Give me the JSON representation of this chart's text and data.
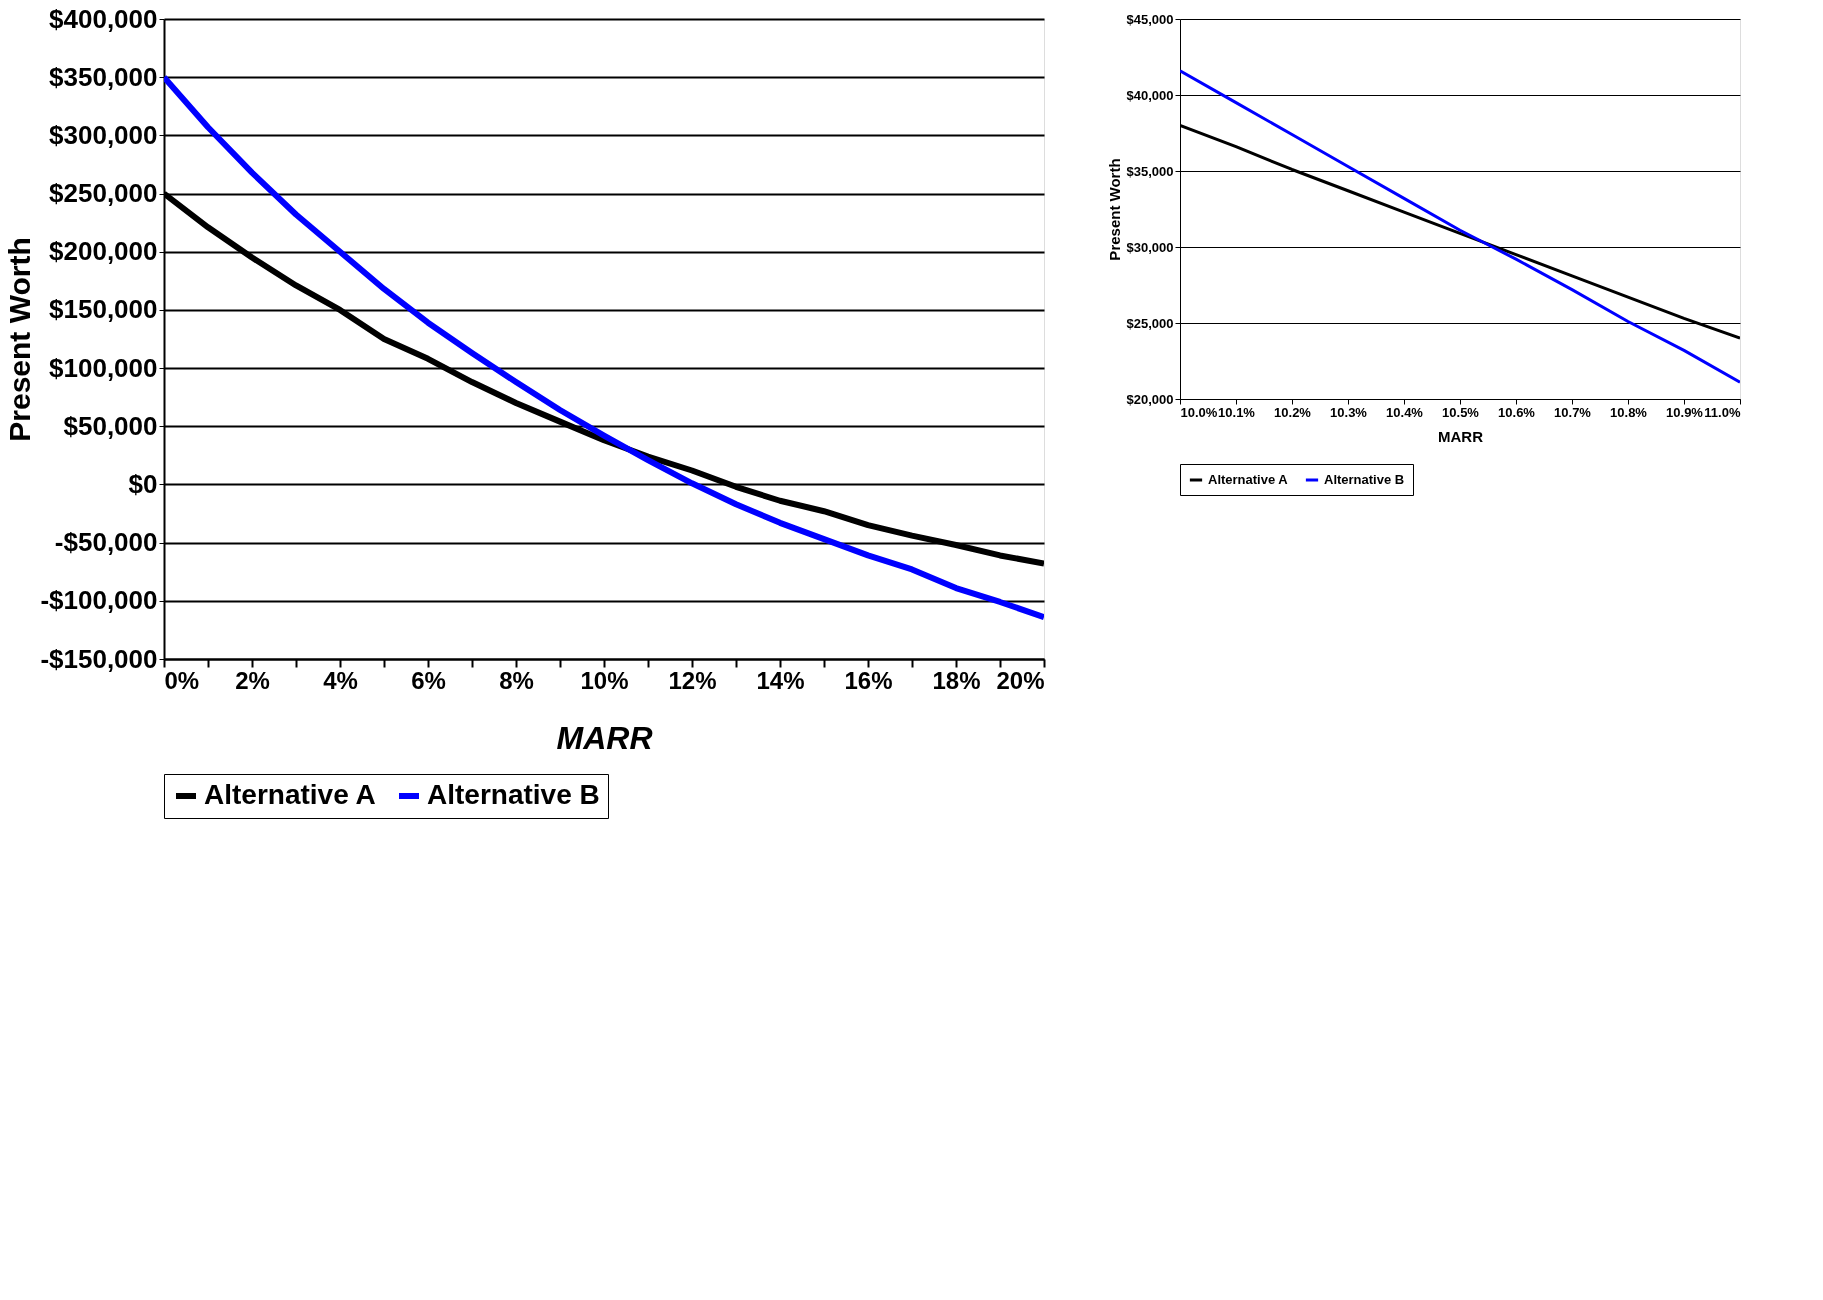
{
  "chart_data": [
    {
      "type": "line",
      "xlabel": "MARR",
      "ylabel": "Present Worth",
      "grid": "y",
      "legend": "bottom",
      "x": [
        0,
        1,
        2,
        3,
        4,
        5,
        6,
        7,
        8,
        9,
        10,
        11,
        12,
        13,
        14,
        15,
        16,
        17,
        18,
        19,
        20
      ],
      "series": [
        {
          "name": "Alternative A",
          "color": "#000000",
          "values": [
            250000,
            221000,
            195000,
            171000,
            150000,
            125000,
            108000,
            88000,
            70000,
            54000,
            38000,
            24000,
            12000,
            -2000,
            -14000,
            -23000,
            -35000,
            -44000,
            -52000,
            -61000,
            -68000
          ]
        },
        {
          "name": "Alternative B",
          "color": "#0000ff",
          "values": [
            350000,
            307000,
            268000,
            232000,
            200000,
            168000,
            139000,
            113000,
            88000,
            64000,
            42000,
            21000,
            1000,
            -17000,
            -33000,
            -47000,
            -61000,
            -73000,
            -89000,
            -101000,
            -114000
          ]
        }
      ],
      "xlim": [
        0,
        20
      ],
      "xticks": [
        {
          "value": 0,
          "label": "0%"
        },
        {
          "value": 1,
          "label": null
        },
        {
          "value": 2,
          "label": "2%"
        },
        {
          "value": 3,
          "label": null
        },
        {
          "value": 4,
          "label": "4%"
        },
        {
          "value": 5,
          "label": null
        },
        {
          "value": 6,
          "label": "6%"
        },
        {
          "value": 7,
          "label": null
        },
        {
          "value": 8,
          "label": "8%"
        },
        {
          "value": 9,
          "label": null
        },
        {
          "value": 10,
          "label": "10%"
        },
        {
          "value": 11,
          "label": null
        },
        {
          "value": 12,
          "label": "12%"
        },
        {
          "value": 13,
          "label": null
        },
        {
          "value": 14,
          "label": "14%"
        },
        {
          "value": 15,
          "label": null
        },
        {
          "value": 16,
          "label": "16%"
        },
        {
          "value": 17,
          "label": null
        },
        {
          "value": 18,
          "label": "18%"
        },
        {
          "value": 19,
          "label": null
        },
        {
          "value": 20,
          "label": "20%"
        }
      ],
      "ylim": [
        -150000,
        400000
      ],
      "yticks": [
        {
          "value": -150000,
          "label": "-$150,000"
        },
        {
          "value": -100000,
          "label": "-$100,000"
        },
        {
          "value": -50000,
          "label": "-$50,000"
        },
        {
          "value": 0,
          "label": "$0"
        },
        {
          "value": 50000,
          "label": "$50,000"
        },
        {
          "value": 100000,
          "label": "$100,000"
        },
        {
          "value": 150000,
          "label": "$150,000"
        },
        {
          "value": 200000,
          "label": "$200,000"
        },
        {
          "value": 250000,
          "label": "$250,000"
        },
        {
          "value": 300000,
          "label": "$300,000"
        },
        {
          "value": 350000,
          "label": "$350,000"
        },
        {
          "value": 400000,
          "label": "$400,000"
        }
      ]
    },
    {
      "type": "line",
      "xlabel": "MARR",
      "ylabel": "Present Worth",
      "grid": "y",
      "legend": "bottom",
      "x": [
        10.0,
        10.1,
        10.2,
        10.3,
        10.4,
        10.5,
        10.6,
        10.7,
        10.8,
        10.9,
        11.0
      ],
      "series": [
        {
          "name": "Alternative A",
          "color": "#000000",
          "values": [
            38000,
            36600,
            35100,
            33700,
            32300,
            30900,
            29500,
            28100,
            26700,
            25300,
            24000
          ]
        },
        {
          "name": "Alternative B",
          "color": "#0000ff",
          "values": [
            41600,
            39500,
            37400,
            35300,
            33200,
            31100,
            29200,
            27200,
            25100,
            23200,
            21100
          ]
        }
      ],
      "xlim": [
        10.0,
        11.0
      ],
      "xticks": [
        {
          "value": 10.0,
          "label": "10.0%"
        },
        {
          "value": 10.1,
          "label": "10.1%"
        },
        {
          "value": 10.2,
          "label": "10.2%"
        },
        {
          "value": 10.3,
          "label": "10.3%"
        },
        {
          "value": 10.4,
          "label": "10.4%"
        },
        {
          "value": 10.5,
          "label": "10.5%"
        },
        {
          "value": 10.6,
          "label": "10.6%"
        },
        {
          "value": 10.7,
          "label": "10.7%"
        },
        {
          "value": 10.8,
          "label": "10.8%"
        },
        {
          "value": 10.9,
          "label": "10.9%"
        },
        {
          "value": 11.0,
          "label": "11.0%"
        }
      ],
      "ylim": [
        20000,
        45000
      ],
      "yticks": [
        {
          "value": 20000,
          "label": "$20,000"
        },
        {
          "value": 25000,
          "label": "$25,000"
        },
        {
          "value": 30000,
          "label": "$30,000"
        },
        {
          "value": 35000,
          "label": "$35,000"
        },
        {
          "value": 40000,
          "label": "$40,000"
        },
        {
          "value": 45000,
          "label": "$45,000"
        }
      ]
    }
  ]
}
